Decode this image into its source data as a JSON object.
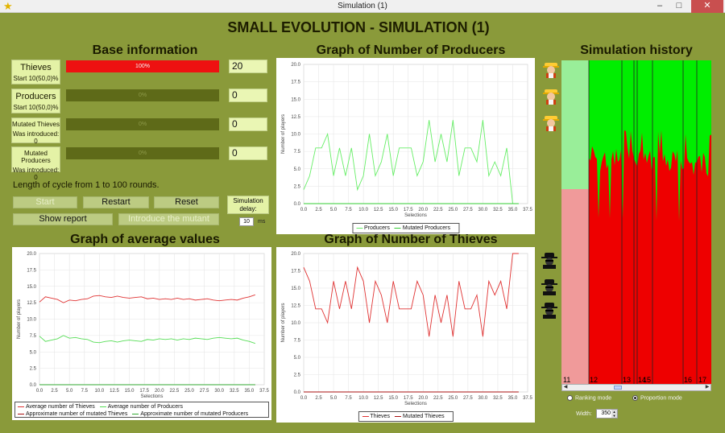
{
  "window": {
    "title": "Simulation (1)",
    "minimize": "–",
    "maximize": "□",
    "close": "✕"
  },
  "main_title": "SMALL EVOLUTION - SIMULATION (1)",
  "base_info": {
    "title": "Base information",
    "rows": [
      {
        "label": "Thieves",
        "sub": "Start 10(50,0)%",
        "bar_text": "100%",
        "fraction": 1.0,
        "value": "20",
        "bar_color": "#ee1111"
      },
      {
        "label": "Producers",
        "sub": "Start 10(50,0)%",
        "bar_text": "0%",
        "fraction": 0.0,
        "value": "0",
        "bar_color": "#ee1111"
      },
      {
        "label": "Mutated Thieves",
        "sub": "Was introduced: 0",
        "bar_text": "0%",
        "fraction": 0.0,
        "value": "0",
        "bar_color": "#ee1111"
      },
      {
        "label": "Mutated Producers",
        "sub": "Was introduced: 0",
        "bar_text": "0%",
        "fraction": 0.0,
        "value": "0",
        "bar_color": "#ee1111"
      }
    ],
    "cycle_text": "Length of cycle from 1 to 100 rounds.",
    "start": "Start",
    "restart": "Restart",
    "reset": "Reset",
    "show_report": "Show report",
    "introduce_mutant": "Introduce the mutant",
    "delay_label_1": "Simulation",
    "delay_label_2": "delay:",
    "delay_value": "10",
    "delay_unit": "ms"
  },
  "chart_titles": {
    "producers": "Graph of Number of Producers",
    "thieves": "Graph of Number of Thieves",
    "average": "Graph of average values",
    "history": "Simulation history"
  },
  "icons": {
    "producer": "farmer-icon",
    "thief": "thief-icon"
  },
  "chart_data": [
    {
      "id": "producers",
      "type": "line",
      "title": "Graph of Number of Producers",
      "xlabel": "Selections",
      "ylabel": "Number of players",
      "xlim": [
        0,
        37.5
      ],
      "ylim": [
        0,
        20
      ],
      "xticks": [
        "0.0",
        "2.5",
        "5.0",
        "7.5",
        "10.0",
        "12.5",
        "15.0",
        "17.5",
        "20.0",
        "22.5",
        "25.0",
        "27.5",
        "30.0",
        "32.5",
        "35.0",
        "37.5"
      ],
      "yticks": [
        "0.0",
        "2.5",
        "5.0",
        "7.5",
        "10.0",
        "12.5",
        "15.0",
        "17.5",
        "20.0"
      ],
      "grid": true,
      "legend": "bottom",
      "series": [
        {
          "name": "Producers",
          "color": "#66ee66",
          "x": [
            0,
            1,
            2,
            3,
            4,
            5,
            6,
            7,
            8,
            9,
            10,
            11,
            12,
            13,
            14,
            15,
            16,
            17,
            18,
            19,
            20,
            21,
            22,
            23,
            24,
            25,
            26,
            27,
            28,
            29,
            30,
            31,
            32,
            33,
            34,
            35,
            36
          ],
          "y": [
            2,
            4,
            8,
            8,
            10,
            4,
            8,
            4,
            8,
            2,
            4,
            10,
            4,
            6,
            10,
            4,
            8,
            8,
            8,
            4,
            6,
            12,
            6,
            10,
            6,
            12,
            4,
            8,
            8,
            6,
            12,
            4,
            6,
            4,
            8,
            0,
            0
          ]
        },
        {
          "name": "Mutated Producers",
          "color": "#33cc33",
          "x": [
            0,
            36
          ],
          "y": [
            0,
            0
          ]
        }
      ]
    },
    {
      "id": "thieves",
      "type": "line",
      "title": "Graph of Number of Thieves",
      "xlabel": "Selections",
      "ylabel": "Number of players",
      "xlim": [
        0,
        37.5
      ],
      "ylim": [
        0,
        20
      ],
      "xticks": [
        "0.0",
        "2.5",
        "5.0",
        "7.5",
        "10.0",
        "12.5",
        "15.0",
        "17.5",
        "20.0",
        "22.5",
        "25.0",
        "27.5",
        "30.0",
        "32.5",
        "35.0",
        "37.5"
      ],
      "yticks": [
        "0.0",
        "2.5",
        "5.0",
        "7.5",
        "10.0",
        "12.5",
        "15.0",
        "17.5",
        "20.0"
      ],
      "grid": true,
      "legend": "bottom",
      "series": [
        {
          "name": "Thieves",
          "color": "#e03333",
          "x": [
            0,
            1,
            2,
            3,
            4,
            5,
            6,
            7,
            8,
            9,
            10,
            11,
            12,
            13,
            14,
            15,
            16,
            17,
            18,
            19,
            20,
            21,
            22,
            23,
            24,
            25,
            26,
            27,
            28,
            29,
            30,
            31,
            32,
            33,
            34,
            35,
            36
          ],
          "y": [
            18,
            16,
            12,
            12,
            10,
            16,
            12,
            16,
            12,
            18,
            16,
            10,
            16,
            14,
            10,
            16,
            12,
            12,
            12,
            16,
            14,
            8,
            14,
            10,
            14,
            8,
            16,
            12,
            12,
            14,
            8,
            16,
            14,
            16,
            12,
            20,
            20
          ]
        },
        {
          "name": "Mutated Thieves",
          "color": "#aa1111",
          "x": [
            0,
            36
          ],
          "y": [
            0,
            0
          ]
        }
      ]
    },
    {
      "id": "average",
      "type": "line",
      "title": "Graph of average values",
      "xlabel": "Selections",
      "ylabel": "Number of players",
      "xlim": [
        0,
        37.5
      ],
      "ylim": [
        0,
        20
      ],
      "xticks": [
        "0.0",
        "2.5",
        "5.0",
        "7.5",
        "10.0",
        "12.5",
        "15.0",
        "17.5",
        "20.0",
        "22.5",
        "25.0",
        "27.5",
        "30.0",
        "32.5",
        "35.0",
        "37.5"
      ],
      "yticks": [
        "0.0",
        "2.5",
        "5.0",
        "7.5",
        "10.0",
        "12.5",
        "15.0",
        "17.5",
        "20.0"
      ],
      "grid": true,
      "legend": "bottom",
      "series": [
        {
          "name": "Average number of Thieves",
          "color": "#e03333",
          "x": [
            0,
            1,
            2,
            3,
            4,
            5,
            6,
            7,
            8,
            9,
            10,
            11,
            12,
            13,
            14,
            15,
            16,
            17,
            18,
            19,
            20,
            21,
            22,
            23,
            24,
            25,
            26,
            27,
            28,
            29,
            30,
            31,
            32,
            33,
            34,
            35,
            36
          ],
          "y": [
            12.6,
            13.4,
            13.2,
            13.0,
            12.5,
            12.9,
            12.8,
            13.0,
            13.1,
            13.5,
            13.6,
            13.4,
            13.3,
            13.5,
            13.3,
            13.2,
            13.3,
            13.4,
            13.1,
            13.2,
            13.0,
            13.1,
            13.0,
            13.2,
            13.0,
            13.1,
            12.9,
            13.0,
            13.1,
            12.9,
            12.8,
            12.9,
            13.0,
            12.9,
            13.2,
            13.4,
            13.7
          ]
        },
        {
          "name": "Average number of Producers",
          "color": "#55dd55",
          "x": [
            0,
            1,
            2,
            3,
            4,
            5,
            6,
            7,
            8,
            9,
            10,
            11,
            12,
            13,
            14,
            15,
            16,
            17,
            18,
            19,
            20,
            21,
            22,
            23,
            24,
            25,
            26,
            27,
            28,
            29,
            30,
            31,
            32,
            33,
            34,
            35,
            36
          ],
          "y": [
            7.4,
            6.6,
            6.8,
            7.0,
            7.5,
            7.1,
            7.2,
            7.0,
            6.9,
            6.5,
            6.4,
            6.6,
            6.7,
            6.5,
            6.7,
            6.8,
            6.7,
            6.6,
            6.9,
            6.8,
            7.0,
            6.9,
            7.0,
            6.8,
            7.0,
            6.9,
            7.1,
            7.0,
            6.9,
            7.1,
            7.2,
            7.1,
            7.0,
            7.1,
            6.8,
            6.6,
            6.3
          ]
        },
        {
          "name": "Approximate number of mutated Thieves",
          "color": "#aa1111",
          "x": [
            0,
            36
          ],
          "y": [
            0,
            0
          ]
        },
        {
          "name": "Approximate number of mutated Producers",
          "color": "#33aa33",
          "x": [
            0,
            36
          ],
          "y": [
            0,
            0
          ]
        }
      ]
    }
  ],
  "history": {
    "labels": [
      "11",
      "12",
      "13",
      "14",
      "15",
      "16",
      "17"
    ],
    "ranking_mode": "Ranking mode",
    "proportion_mode": "Proportion mode",
    "width_label": "Width:",
    "width_value": "350",
    "colors": {
      "producers": "#00ee00",
      "thieves": "#ee0000",
      "prev_producers": "#99ee99",
      "prev_thieves": "#f09a9a"
    }
  }
}
